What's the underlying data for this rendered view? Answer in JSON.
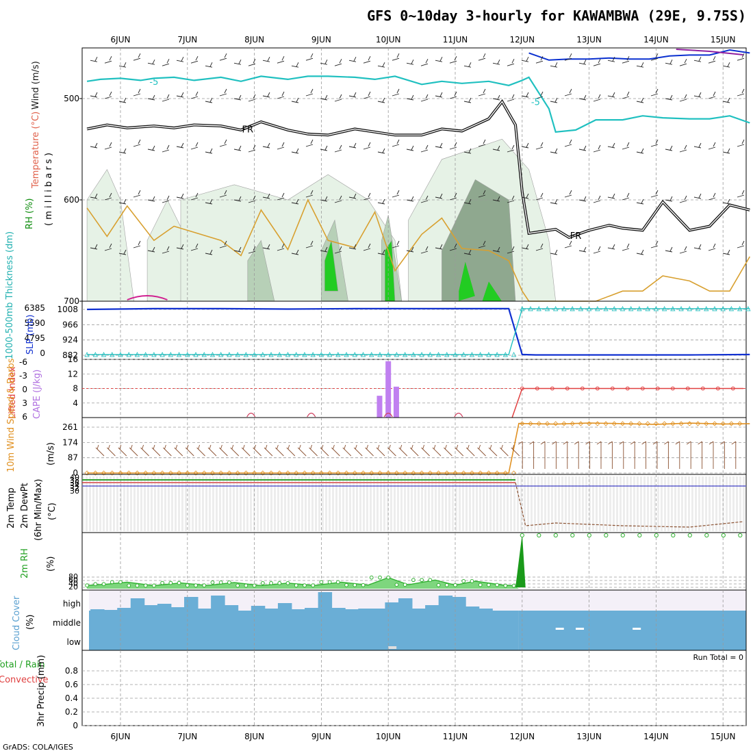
{
  "title": "GFS 0~10day 3-hourly for KAWAMBWA (29E, 9.75S)",
  "credit": "GrADS: COLA/IGES",
  "run_total_label": "Run Total = 0",
  "colors": {
    "temperature": "#d8a030",
    "wind": "#0a30d0",
    "cyan": "#20c0c0",
    "freezing": "#101010",
    "rh_light": "#e6f2e6",
    "rh_mid": "#b7d0b7",
    "rh_dark": "#8fa88f",
    "rh_green": "#22cc22",
    "cape": "#c080f0",
    "lifted": "#e04040",
    "slp": "#1030d0",
    "thickness": "#20c0c0",
    "wind10": "#e09020",
    "barb10": "#8a5030",
    "rh2m": "#30b030",
    "cloud": "#6aaed6",
    "cloud_bg": "#f4f0f8"
  },
  "chart_data": [
    {
      "panel": "upper-air",
      "type": "line",
      "labels": {
        "rh": "RH (%)",
        "temperature": "Temperature (°C)",
        "wind": "Wind (m/s)",
        "yunit": "( m i l l i b a r s )"
      },
      "y_ticks": [
        "500",
        "600",
        "700"
      ],
      "ylim": [
        700,
        450
      ],
      "annotations": [
        "-5",
        "-5",
        "FR",
        "FR"
      ],
      "series": [
        {
          "name": "-5C isotherm",
          "x": [
            0,
            0.2,
            0.5,
            0.8,
            1,
            1.3,
            1.6,
            2,
            2.3,
            2.6,
            3,
            3.3,
            3.6,
            4,
            4.3,
            4.6,
            5,
            5.3,
            5.6,
            6,
            6.3,
            6.5,
            6.6,
            6.9,
            7,
            7.3,
            7.6,
            8,
            8.3,
            8.6,
            9,
            9.3,
            9.6,
            9.9
          ],
          "values": [
            483,
            481,
            480,
            482,
            480,
            479,
            482,
            479,
            483,
            478,
            481,
            478,
            478,
            479,
            481,
            478,
            486,
            483,
            485,
            483,
            487,
            482,
            479,
            510,
            533,
            531,
            521,
            521,
            517,
            519,
            520,
            520,
            517,
            524
          ]
        },
        {
          "name": "Freezing level",
          "x": [
            0,
            0.3,
            0.6,
            1,
            1.3,
            1.6,
            2,
            2.3,
            2.6,
            3,
            3.3,
            3.6,
            4,
            4.3,
            4.6,
            5,
            5.3,
            5.6,
            6,
            6.2,
            6.4,
            6.5,
            6.6,
            6.8,
            7,
            7.2,
            7.5,
            7.8,
            8,
            8.3,
            8.6,
            9,
            9.3,
            9.6,
            9.9
          ],
          "values": [
            530,
            526,
            529,
            527,
            529,
            526,
            527,
            531,
            523,
            531,
            535,
            536,
            530,
            533,
            536,
            536,
            530,
            532,
            520,
            503,
            526,
            592,
            633,
            631,
            629,
            637,
            630,
            625,
            628,
            630,
            602,
            630,
            626,
            605,
            610
          ]
        },
        {
          "name": "Temperature 2",
          "x": [
            0,
            0.3,
            0.6,
            1,
            1.3,
            1.6,
            2,
            2.3,
            2.6,
            3,
            3.3,
            3.6,
            4,
            4.3,
            4.6,
            5,
            5.3,
            5.6,
            6,
            6.3,
            6.5,
            6.6,
            6.9,
            7.3,
            7.6,
            8,
            8.3,
            8.6,
            9,
            9.3,
            9.6,
            9.9
          ],
          "values": [
            608,
            636,
            606,
            640,
            626,
            632,
            640,
            655,
            610,
            649,
            600,
            640,
            647,
            612,
            670,
            634,
            618,
            648,
            650,
            660,
            690,
            700,
            700,
            700,
            700,
            690,
            690,
            675,
            680,
            690,
            690,
            656
          ]
        },
        {
          "name": "Wind band",
          "x": [
            6.6,
            6.9,
            7.2,
            7.5,
            7.8,
            8.1,
            8.4,
            8.7,
            9,
            9.3,
            9.6,
            9.9
          ],
          "values": [
            455,
            462,
            461,
            461,
            460,
            461,
            461,
            458,
            457,
            457,
            452,
            455
          ]
        }
      ]
    },
    {
      "panel": "slp-thickness",
      "type": "line",
      "labels": {
        "left": "1000-500mb Thickness (dm)",
        "right": "SLP (mb)"
      },
      "y_ticks": [
        "1008",
        "966",
        "924",
        "882"
      ],
      "y2_ticks": [
        "6385",
        "5590",
        "4795",
        "0"
      ],
      "ylim": [
        882,
        1008
      ],
      "series": [
        {
          "name": "SLP",
          "x": [
            0,
            1,
            2,
            3,
            4,
            5,
            6,
            6.3,
            6.5,
            6.7,
            7,
            8,
            9,
            9.9
          ],
          "values": [
            1008,
            1010,
            1010,
            1009,
            1010,
            1010,
            1010,
            1010,
            884,
            883,
            883,
            883,
            883,
            884
          ]
        },
        {
          "name": "Thickness",
          "x": [
            0,
            1,
            2,
            3,
            4,
            5,
            6,
            6.3,
            6.5,
            6.7,
            7,
            8,
            9,
            9.9
          ],
          "values": [
            884,
            884,
            884,
            884,
            884,
            884,
            884,
            884,
            1010,
            1010,
            1010,
            1010,
            1010,
            1010
          ]
        }
      ]
    },
    {
      "panel": "cape-li",
      "type": "bar",
      "labels": {
        "left": "Lifted Index",
        "right": "CAPE (J/kg)"
      },
      "y_ticks": [
        "16",
        "12",
        "8",
        "4"
      ],
      "y2_ticks": [
        "-6",
        "-3",
        "0",
        "3",
        "6"
      ],
      "ylim": [
        0,
        16
      ],
      "cape_x": [
        4.37,
        4.5,
        4.62
      ],
      "cape_values": [
        6,
        15.5,
        8.5
      ],
      "lifted_index_after": 0
    },
    {
      "panel": "wind10",
      "type": "line",
      "labels": {
        "left": "10m Wind Speed & Barbs",
        "unit": "(m/s)"
      },
      "y_ticks": [
        "261",
        "174",
        "87",
        "0"
      ],
      "ylim": [
        0,
        300
      ],
      "series": [
        {
          "name": "10m wind speed",
          "x": [
            0,
            6.3,
            6.45,
            7,
            7.5,
            8,
            8.5,
            9,
            9.5,
            9.9
          ],
          "values": [
            0,
            0,
            282,
            278,
            285,
            281,
            277,
            284,
            279,
            281
          ]
        }
      ]
    },
    {
      "panel": "temp2m",
      "type": "line",
      "labels": {
        "a": "2m Temp",
        "b": "2m DewPt",
        "c": "(6hr Min/Max)",
        "unit": "(°C)"
      },
      "y_ticks": [
        "40",
        "38",
        "36",
        "34",
        "32",
        "30"
      ],
      "series": []
    },
    {
      "panel": "rh2m",
      "type": "area",
      "labels": {
        "left": "2m RH",
        "unit": "(%)"
      },
      "y_ticks": [
        "80",
        "60",
        "40",
        "20"
      ],
      "ylim": [
        0,
        100
      ],
      "series": [
        {
          "name": "2m RH",
          "x": [
            0,
            0.3,
            0.6,
            1,
            1.4,
            1.8,
            2.2,
            2.6,
            3,
            3.4,
            3.8,
            4.2,
            4.5,
            4.8,
            5.2,
            5.5,
            5.8,
            6.2,
            6.4,
            6.45,
            7,
            9.9
          ],
          "values": [
            20,
            28,
            40,
            19,
            35,
            20,
            38,
            19,
            34,
            20,
            40,
            22,
            68,
            24,
            53,
            22,
            46,
            23,
            18,
            100,
            100,
            100
          ]
        }
      ]
    },
    {
      "panel": "cloud",
      "type": "area",
      "labels": {
        "left": "Cloud Cover",
        "unit": "(%)"
      },
      "y_ticks": [
        "high",
        "middle",
        "low"
      ]
    },
    {
      "panel": "precip",
      "type": "bar",
      "labels": {
        "a": "Total / Rain",
        "b": "Convective",
        "c": "3hr Precip (mm)"
      },
      "y_ticks": [
        "0.8",
        "0.6",
        "0.4",
        "0.2",
        "0"
      ],
      "ylim": [
        0,
        1
      ],
      "values": []
    }
  ],
  "x_days": [
    "6JUN",
    "7JUN",
    "8JUN",
    "9JUN",
    "10JUN",
    "11JUN",
    "12JUN",
    "13JUN",
    "14JUN",
    "15JUN"
  ]
}
